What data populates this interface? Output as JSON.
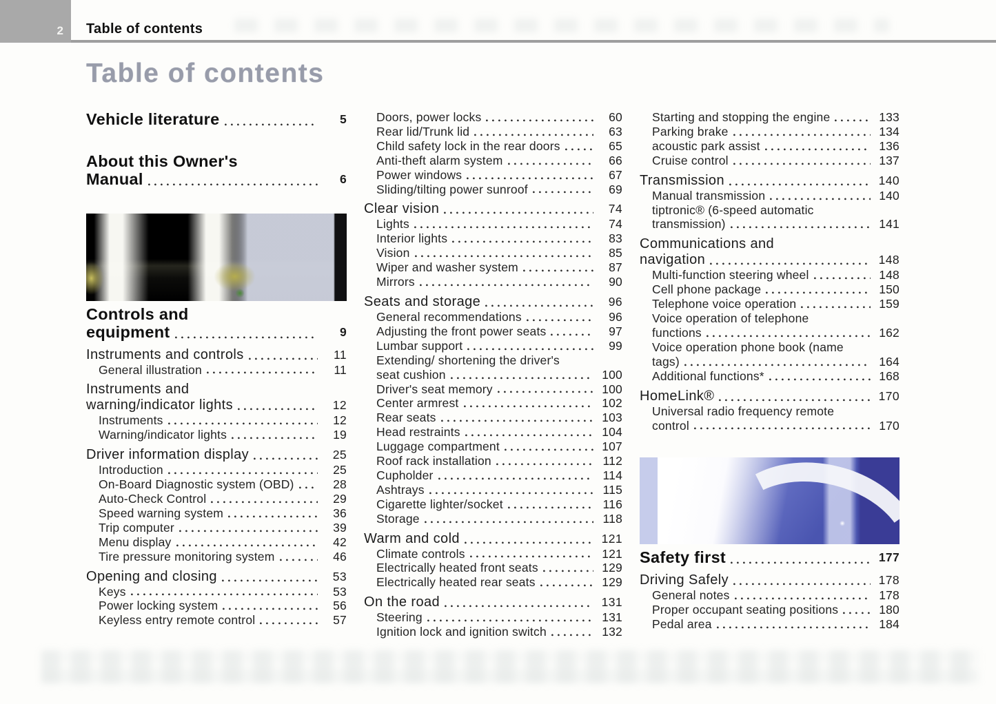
{
  "page": {
    "number": "2",
    "header_title": "Table of contents",
    "title": "Table of contents"
  },
  "colors": {
    "header_bar": "#a9a9a9",
    "header_rule": "#9e9e9e",
    "title_gray": "#989caa",
    "body_text": "#1f1f1f",
    "dot_leader": "#2e2e2e",
    "photo1_palette": [
      "#050505",
      "#fffdf6",
      "#c6bd5e",
      "#d3d7e4",
      "#4a8838"
    ],
    "photo2_palette": [
      "#ffffff",
      "#c3c9ea",
      "#6570c4",
      "#4a55b0",
      "#3a3c96"
    ]
  },
  "columns": [
    {
      "items": [
        {
          "t": "h1",
          "label": "Vehicle literature",
          "page": "5"
        },
        {
          "t": "h1",
          "label": "About this Owner's\nManual",
          "page": "6"
        },
        {
          "t": "img",
          "name": "photo-dashboard-night",
          "style": "photo1"
        },
        {
          "t": "h1",
          "label": "Controls and\nequipment",
          "page": "9"
        },
        {
          "t": "h2",
          "label": "Instruments and controls",
          "page": "11"
        },
        {
          "t": "sub",
          "label": "General illustration",
          "page": "11"
        },
        {
          "t": "h2",
          "label": "Instruments and\nwarning/indicator lights",
          "page": "12"
        },
        {
          "t": "sub",
          "label": "Instruments",
          "page": "12"
        },
        {
          "t": "sub",
          "label": "Warning/indicator lights",
          "page": "19"
        },
        {
          "t": "h2",
          "label": "Driver information display",
          "page": "25"
        },
        {
          "t": "sub",
          "label": "Introduction",
          "page": "25"
        },
        {
          "t": "sub",
          "label": "On-Board Diagnostic system (OBD)",
          "page": "28"
        },
        {
          "t": "sub",
          "label": "Auto-Check Control",
          "page": "29"
        },
        {
          "t": "sub",
          "label": "Speed warning system",
          "page": "36"
        },
        {
          "t": "sub",
          "label": "Trip computer",
          "page": "39"
        },
        {
          "t": "sub",
          "label": "Menu display",
          "page": "42"
        },
        {
          "t": "sub",
          "label": "Tire pressure monitoring system",
          "page": "46"
        },
        {
          "t": "h2",
          "label": "Opening and closing",
          "page": "53"
        },
        {
          "t": "sub",
          "label": "Keys",
          "page": "53"
        },
        {
          "t": "sub",
          "label": "Power locking system",
          "page": "56"
        },
        {
          "t": "sub",
          "label": "Keyless entry remote control",
          "page": "57"
        }
      ]
    },
    {
      "items": [
        {
          "t": "sub",
          "label": "Doors, power locks",
          "page": "60"
        },
        {
          "t": "sub",
          "label": "Rear lid/Trunk lid",
          "page": "63"
        },
        {
          "t": "sub",
          "label": "Child safety lock in the rear doors",
          "page": "65"
        },
        {
          "t": "sub",
          "label": "Anti-theft alarm system",
          "page": "66"
        },
        {
          "t": "sub",
          "label": "Power windows",
          "page": "67"
        },
        {
          "t": "sub",
          "label": "Sliding/tilting power sunroof",
          "page": "69"
        },
        {
          "t": "h2",
          "label": "Clear vision",
          "page": "74"
        },
        {
          "t": "sub",
          "label": "Lights",
          "page": "74"
        },
        {
          "t": "sub",
          "label": "Interior lights",
          "page": "83"
        },
        {
          "t": "sub",
          "label": "Vision",
          "page": "85"
        },
        {
          "t": "sub",
          "label": "Wiper and washer system",
          "page": "87"
        },
        {
          "t": "sub",
          "label": "Mirrors",
          "page": "90"
        },
        {
          "t": "h2",
          "label": "Seats and storage",
          "page": "96"
        },
        {
          "t": "sub",
          "label": "General recommendations",
          "page": "96"
        },
        {
          "t": "sub",
          "label": "Adjusting the front power seats",
          "page": "97"
        },
        {
          "t": "sub",
          "label": "Lumbar support",
          "page": "99"
        },
        {
          "t": "sub",
          "label": "Extending/ shortening the driver's\nseat cushion",
          "page": "100"
        },
        {
          "t": "sub",
          "label": "Driver's seat memory",
          "page": "100"
        },
        {
          "t": "sub",
          "label": "Center armrest",
          "page": "102"
        },
        {
          "t": "sub",
          "label": "Rear seats",
          "page": "103"
        },
        {
          "t": "sub",
          "label": "Head restraints",
          "page": "104"
        },
        {
          "t": "sub",
          "label": "Luggage compartment",
          "page": "107"
        },
        {
          "t": "sub",
          "label": "Roof rack installation",
          "page": "112"
        },
        {
          "t": "sub",
          "label": "Cupholder",
          "page": "114"
        },
        {
          "t": "sub",
          "label": "Ashtrays",
          "page": "115"
        },
        {
          "t": "sub",
          "label": "Cigarette lighter/socket",
          "page": "116"
        },
        {
          "t": "sub",
          "label": "Storage",
          "page": "118"
        },
        {
          "t": "h2",
          "label": "Warm and cold",
          "page": "121"
        },
        {
          "t": "sub",
          "label": "Climate controls",
          "page": "121"
        },
        {
          "t": "sub",
          "label": "Electrically heated front seats",
          "page": "129"
        },
        {
          "t": "sub",
          "label": "Electrically heated rear seats",
          "page": "129"
        },
        {
          "t": "h2",
          "label": "On the road",
          "page": "131"
        },
        {
          "t": "sub",
          "label": "Steering",
          "page": "131"
        },
        {
          "t": "sub",
          "label": "Ignition lock and ignition switch",
          "page": "132"
        }
      ]
    },
    {
      "items": [
        {
          "t": "sub",
          "label": "Starting and stopping the engine",
          "page": "133"
        },
        {
          "t": "sub",
          "label": "Parking brake",
          "page": "134"
        },
        {
          "t": "sub",
          "label": "acoustic park assist",
          "page": "136"
        },
        {
          "t": "sub",
          "label": "Cruise control",
          "page": "137"
        },
        {
          "t": "h2",
          "label": "Transmission",
          "page": "140"
        },
        {
          "t": "sub",
          "label": "Manual transmission",
          "page": "140"
        },
        {
          "t": "sub",
          "label": "tiptronic® (6-speed automatic\ntransmission)",
          "page": "141"
        },
        {
          "t": "h2",
          "label": "Communications and\nnavigation",
          "page": "148"
        },
        {
          "t": "sub",
          "label": "Multi-function steering wheel",
          "page": "148"
        },
        {
          "t": "sub",
          "label": "Cell phone package",
          "page": "150"
        },
        {
          "t": "sub",
          "label": "Telephone voice operation",
          "page": "159"
        },
        {
          "t": "sub",
          "label": "Voice operation of telephone\nfunctions",
          "page": "162"
        },
        {
          "t": "sub",
          "label": "Voice operation phone book (name\ntags)",
          "page": "164"
        },
        {
          "t": "sub",
          "label": "Additional functions*",
          "page": "168"
        },
        {
          "t": "h2",
          "label": "HomeLink®",
          "page": "170"
        },
        {
          "t": "sub",
          "label": "Universal radio frequency remote\ncontrol",
          "page": "170"
        },
        {
          "t": "img",
          "name": "photo-paraglider-sky",
          "style": "photo2"
        },
        {
          "t": "h1",
          "label": "Safety first",
          "page": "177"
        },
        {
          "t": "h2",
          "label": "Driving Safely",
          "page": "178"
        },
        {
          "t": "sub",
          "label": "General notes",
          "page": "178"
        },
        {
          "t": "sub",
          "label": "Proper occupant seating positions",
          "page": "180"
        },
        {
          "t": "sub",
          "label": "Pedal area",
          "page": "184"
        }
      ]
    }
  ]
}
